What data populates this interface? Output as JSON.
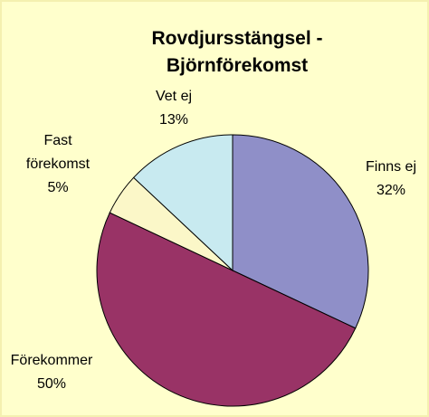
{
  "chart_data": {
    "type": "pie",
    "title": "Rovdjursstängsel - Björnförekomst",
    "categories": [
      "Finns ej",
      "Förekommer",
      "Fast förekomst",
      "Vet ej"
    ],
    "values": [
      32,
      50,
      5,
      13
    ],
    "value_labels": [
      "32%",
      "50%",
      "5%",
      "13%"
    ],
    "colors": [
      "#8f8fc8",
      "#993366",
      "#fbf7c8",
      "#c8eaf0"
    ]
  }
}
